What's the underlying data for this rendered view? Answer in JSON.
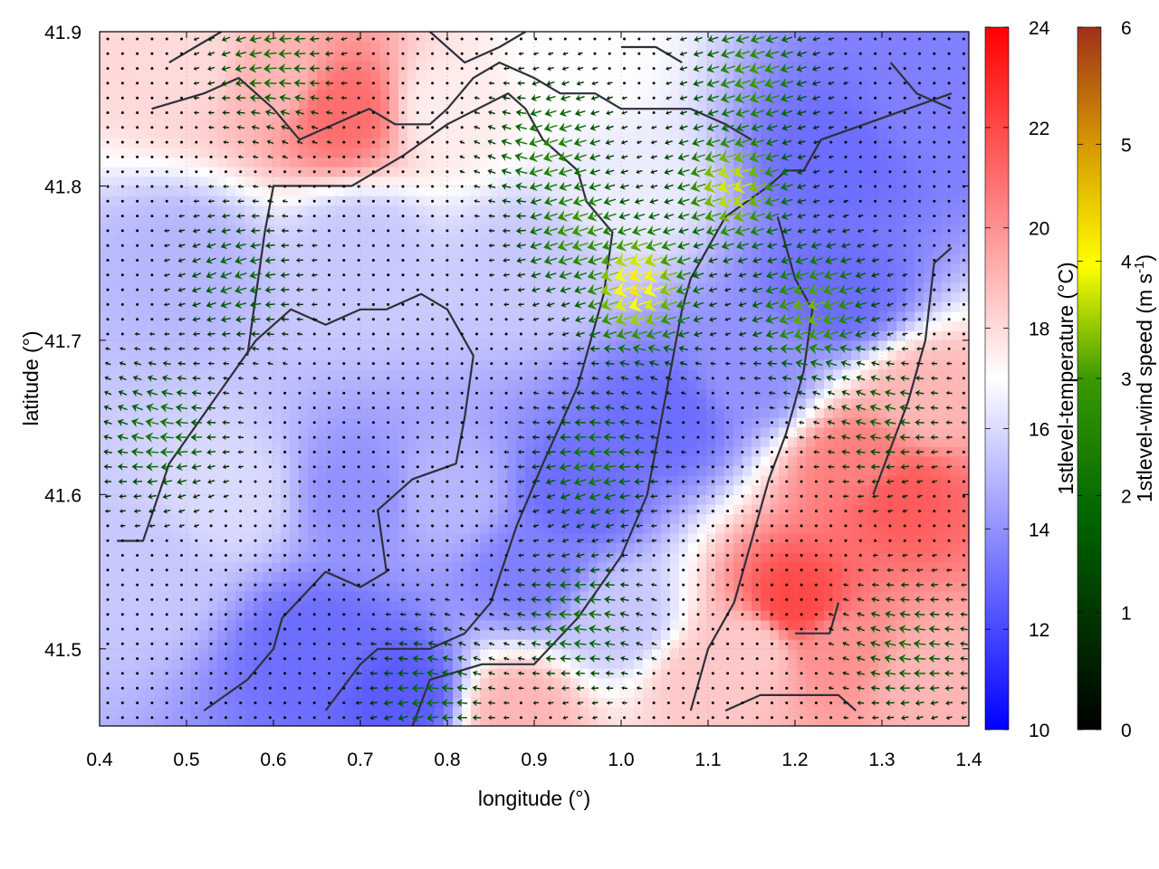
{
  "chart_data": {
    "type": "heatmap",
    "subtype": "vector-field-over-scalar-map",
    "xlabel": "longitude (°)",
    "ylabel": "latitude (°)",
    "xlim": [
      0.4,
      1.4
    ],
    "ylim": [
      41.45,
      41.9
    ],
    "x_ticks": [
      0.4,
      0.5,
      0.6,
      0.7,
      0.8,
      0.9,
      1.0,
      1.1,
      1.2,
      1.3,
      1.4
    ],
    "y_ticks": [
      41.5,
      41.6,
      41.7,
      41.8,
      41.9
    ],
    "grid": true,
    "temperature_colorbar": {
      "label": "1stlevel-temperature (°C)",
      "range": [
        10,
        24
      ],
      "ticks": [
        10,
        12,
        14,
        16,
        18,
        20,
        22,
        24
      ],
      "colors": [
        "#0000ff",
        "#ffffff",
        "#ff0000"
      ]
    },
    "wind_colorbar": {
      "label_main": "1stlevel-wind speed (m s",
      "label_sup": "-1",
      "label_end": ")",
      "range": [
        0,
        6
      ],
      "ticks": [
        0,
        1,
        2,
        3,
        4,
        5,
        6
      ],
      "colors": [
        "#000000",
        "#006400",
        "#ffff00",
        "#a0301a"
      ]
    },
    "temperature_regions": [
      {
        "lon": 0.5,
        "lat": 41.75,
        "t": 15.0
      },
      {
        "lon": 0.45,
        "lat": 41.55,
        "t": 15.5
      },
      {
        "lon": 0.55,
        "lat": 41.6,
        "t": 16.0
      },
      {
        "lon": 0.65,
        "lat": 41.5,
        "t": 13.0
      },
      {
        "lon": 0.75,
        "lat": 41.47,
        "t": 12.5
      },
      {
        "lon": 0.7,
        "lat": 41.6,
        "t": 14.0
      },
      {
        "lon": 0.8,
        "lat": 41.6,
        "t": 15.0
      },
      {
        "lon": 0.9,
        "lat": 41.55,
        "t": 13.5
      },
      {
        "lon": 0.95,
        "lat": 41.6,
        "t": 13.0
      },
      {
        "lon": 1.05,
        "lat": 41.65,
        "t": 13.0
      },
      {
        "lon": 1.15,
        "lat": 41.68,
        "t": 14.0
      },
      {
        "lon": 1.25,
        "lat": 41.73,
        "t": 13.0
      },
      {
        "lon": 1.25,
        "lat": 41.82,
        "t": 13.0
      },
      {
        "lon": 1.35,
        "lat": 41.85,
        "t": 13.5
      },
      {
        "lon": 1.0,
        "lat": 41.8,
        "t": 16.5
      },
      {
        "lon": 0.9,
        "lat": 41.75,
        "t": 15.5
      },
      {
        "lon": 0.7,
        "lat": 41.76,
        "t": 15.5
      },
      {
        "lon": 0.68,
        "lat": 41.85,
        "t": 21.0
      },
      {
        "lon": 0.6,
        "lat": 41.87,
        "t": 19.0
      },
      {
        "lon": 0.5,
        "lat": 41.88,
        "t": 18.0
      },
      {
        "lon": 0.8,
        "lat": 41.85,
        "t": 17.5
      },
      {
        "lon": 0.95,
        "lat": 41.88,
        "t": 17.0
      },
      {
        "lon": 1.32,
        "lat": 41.6,
        "t": 21.5
      },
      {
        "lon": 1.28,
        "lat": 41.62,
        "t": 20.5
      },
      {
        "lon": 1.35,
        "lat": 41.66,
        "t": 19.0
      },
      {
        "lon": 1.2,
        "lat": 41.53,
        "t": 22.0
      },
      {
        "lon": 1.25,
        "lat": 41.5,
        "t": 20.0
      },
      {
        "lon": 1.35,
        "lat": 41.48,
        "t": 19.0
      },
      {
        "lon": 1.15,
        "lat": 41.5,
        "t": 18.5
      },
      {
        "lon": 1.1,
        "lat": 41.48,
        "t": 18.5
      },
      {
        "lon": 1.0,
        "lat": 41.52,
        "t": 15.5
      },
      {
        "lon": 0.88,
        "lat": 41.46,
        "t": 19.0
      }
    ],
    "wind_jets": [
      {
        "lon": 1.02,
        "lat": 41.735,
        "speed": 4.2
      },
      {
        "lon": 1.13,
        "lat": 41.8,
        "speed": 3.8
      },
      {
        "lon": 1.22,
        "lat": 41.72,
        "speed": 3.3
      },
      {
        "lon": 0.95,
        "lat": 41.77,
        "speed": 3.0
      },
      {
        "lon": 1.15,
        "lat": 41.87,
        "speed": 3.0
      },
      {
        "lon": 0.92,
        "lat": 41.82,
        "speed": 2.6
      },
      {
        "lon": 0.97,
        "lat": 41.62,
        "speed": 2.3
      },
      {
        "lon": 0.95,
        "lat": 41.52,
        "speed": 2.2
      },
      {
        "lon": 0.78,
        "lat": 41.47,
        "speed": 2.0
      },
      {
        "lon": 0.47,
        "lat": 41.64,
        "speed": 2.3
      },
      {
        "lon": 0.56,
        "lat": 41.74,
        "speed": 2.0
      },
      {
        "lon": 0.6,
        "lat": 41.88,
        "speed": 2.2
      },
      {
        "lon": 1.33,
        "lat": 41.5,
        "speed": 2.0
      },
      {
        "lon": 1.3,
        "lat": 41.65,
        "speed": 1.8
      }
    ],
    "contour_lines": [
      [
        [
          0.42,
          41.57
        ],
        [
          0.45,
          41.57
        ],
        [
          0.48,
          41.62
        ],
        [
          0.53,
          41.66
        ],
        [
          0.58,
          41.7
        ],
        [
          0.62,
          41.72
        ],
        [
          0.66,
          41.71
        ],
        [
          0.7,
          41.72
        ],
        [
          0.73,
          41.72
        ],
        [
          0.77,
          41.73
        ],
        [
          0.8,
          41.72
        ],
        [
          0.83,
          41.69
        ],
        [
          0.82,
          41.65
        ],
        [
          0.81,
          41.62
        ],
        [
          0.76,
          41.61
        ],
        [
          0.72,
          41.59
        ],
        [
          0.73,
          41.55
        ],
        [
          0.7,
          41.54
        ],
        [
          0.66,
          41.55
        ],
        [
          0.61,
          41.52
        ],
        [
          0.6,
          41.5
        ],
        [
          0.57,
          41.48
        ],
        [
          0.52,
          41.46
        ]
      ],
      [
        [
          0.66,
          41.46
        ],
        [
          0.7,
          41.49
        ],
        [
          0.72,
          41.5
        ],
        [
          0.75,
          41.5
        ],
        [
          0.78,
          41.5
        ],
        [
          0.82,
          41.51
        ],
        [
          0.85,
          41.53
        ],
        [
          0.88,
          41.58
        ],
        [
          0.91,
          41.62
        ],
        [
          0.95,
          41.67
        ],
        [
          0.98,
          41.73
        ],
        [
          0.99,
          41.77
        ],
        [
          0.96,
          41.79
        ],
        [
          0.95,
          41.81
        ],
        [
          0.91,
          41.83
        ],
        [
          0.89,
          41.85
        ],
        [
          0.87,
          41.86
        ],
        [
          0.8,
          41.84
        ],
        [
          0.75,
          41.82
        ],
        [
          0.69,
          41.8
        ],
        [
          0.62,
          41.8
        ],
        [
          0.6,
          41.8
        ],
        [
          0.59,
          41.77
        ],
        [
          0.58,
          41.73
        ],
        [
          0.57,
          41.69
        ]
      ],
      [
        [
          0.76,
          41.45
        ],
        [
          0.78,
          41.48
        ],
        [
          0.84,
          41.49
        ],
        [
          0.9,
          41.49
        ],
        [
          0.95,
          41.52
        ],
        [
          1.0,
          41.56
        ],
        [
          1.03,
          41.6
        ],
        [
          1.05,
          41.66
        ],
        [
          1.07,
          41.72
        ],
        [
          1.08,
          41.74
        ],
        [
          1.12,
          41.78
        ],
        [
          1.17,
          41.8
        ],
        [
          1.19,
          41.81
        ],
        [
          1.21,
          41.81
        ],
        [
          1.23,
          41.83
        ],
        [
          1.28,
          41.84
        ],
        [
          1.33,
          41.85
        ],
        [
          1.38,
          41.86
        ]
      ],
      [
        [
          0.46,
          41.85
        ],
        [
          0.52,
          41.86
        ],
        [
          0.56,
          41.87
        ],
        [
          0.6,
          41.85
        ],
        [
          0.63,
          41.83
        ],
        [
          0.67,
          41.84
        ],
        [
          0.71,
          41.85
        ],
        [
          0.74,
          41.84
        ],
        [
          0.78,
          41.84
        ],
        [
          0.8,
          41.85
        ],
        [
          0.83,
          41.87
        ],
        [
          0.86,
          41.88
        ],
        [
          0.9,
          41.87
        ],
        [
          0.93,
          41.86
        ],
        [
          0.97,
          41.86
        ],
        [
          1.0,
          41.85
        ],
        [
          1.04,
          41.85
        ],
        [
          1.08,
          41.85
        ],
        [
          1.12,
          41.84
        ],
        [
          1.15,
          41.83
        ]
      ],
      [
        [
          1.08,
          41.46
        ],
        [
          1.1,
          41.5
        ],
        [
          1.13,
          41.53
        ],
        [
          1.15,
          41.57
        ],
        [
          1.17,
          41.61
        ],
        [
          1.19,
          41.64
        ],
        [
          1.21,
          41.68
        ],
        [
          1.22,
          41.72
        ],
        [
          1.2,
          41.74
        ],
        [
          1.18,
          41.78
        ]
      ],
      [
        [
          1.29,
          41.6
        ],
        [
          1.31,
          41.63
        ],
        [
          1.33,
          41.66
        ],
        [
          1.35,
          41.7
        ],
        [
          1.36,
          41.75
        ],
        [
          1.38,
          41.76
        ]
      ],
      [
        [
          1.12,
          41.46
        ],
        [
          1.16,
          41.47
        ],
        [
          1.2,
          41.47
        ],
        [
          1.25,
          41.47
        ],
        [
          1.27,
          41.46
        ]
      ],
      [
        [
          1.2,
          41.51
        ],
        [
          1.24,
          41.51
        ],
        [
          1.25,
          41.53
        ]
      ],
      [
        [
          0.48,
          41.88
        ],
        [
          0.51,
          41.89
        ],
        [
          0.54,
          41.9
        ]
      ],
      [
        [
          0.78,
          41.9
        ],
        [
          0.82,
          41.88
        ],
        [
          0.86,
          41.89
        ],
        [
          0.89,
          41.9
        ]
      ],
      [
        [
          1.0,
          41.89
        ],
        [
          1.04,
          41.89
        ],
        [
          1.07,
          41.88
        ]
      ],
      [
        [
          1.31,
          41.88
        ],
        [
          1.34,
          41.86
        ],
        [
          1.38,
          41.85
        ]
      ]
    ]
  }
}
